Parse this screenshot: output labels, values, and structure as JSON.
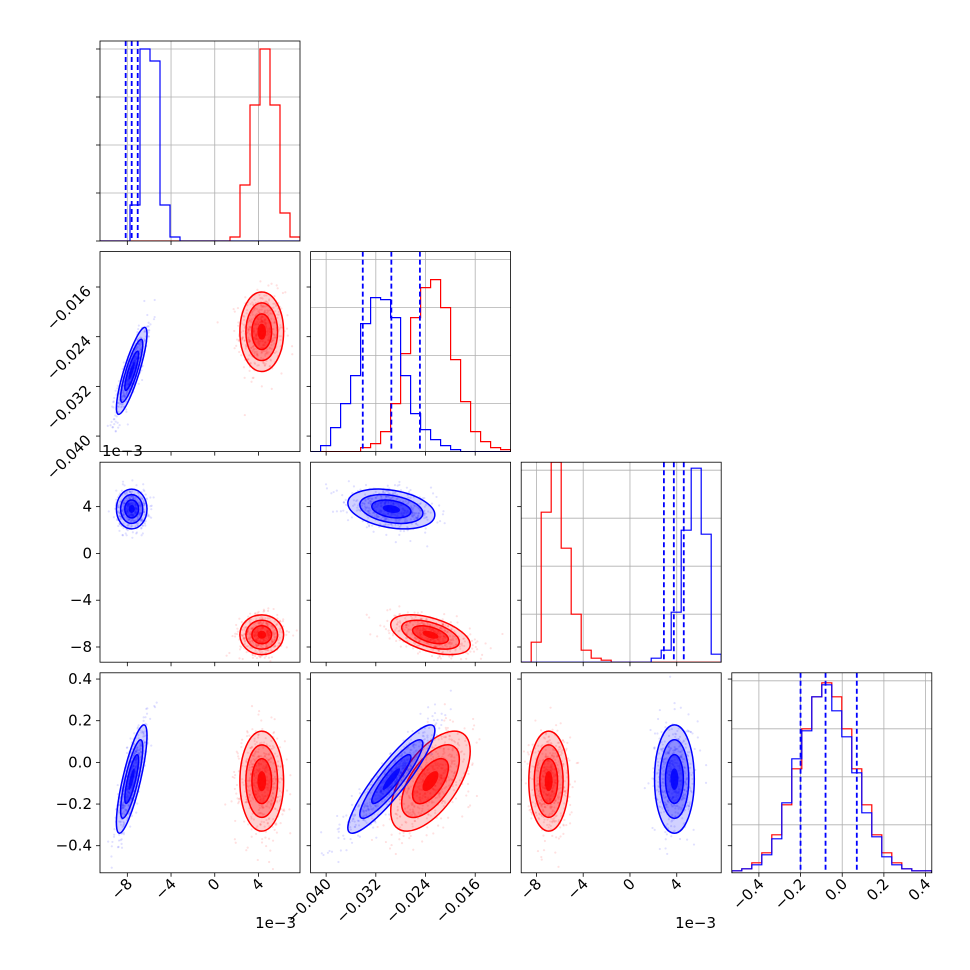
{
  "chart_data": {
    "type": "corner",
    "parameters": [
      {
        "range": [
          -10.5,
          7.8
        ],
        "ticks": [
          -8,
          -4,
          0,
          4
        ],
        "tick_labels": [
          "−8",
          "−4",
          "0",
          "4"
        ],
        "offset_label": "1e−3"
      },
      {
        "range": [
          -0.0425,
          -0.0103
        ],
        "ticks": [
          -0.04,
          -0.032,
          -0.024,
          -0.016
        ],
        "tick_labels": [
          "−0.040",
          "−0.032",
          "−0.024",
          "−0.016"
        ],
        "offset_label": ""
      },
      {
        "range": [
          -9.3,
          7.8
        ],
        "ticks": [
          -8,
          -4,
          0,
          4
        ],
        "tick_labels": [
          "−8",
          "−4",
          "0",
          "4"
        ],
        "offset_label": "1e−3"
      },
      {
        "range": [
          -0.53,
          0.43
        ],
        "ticks": [
          -0.4,
          -0.2,
          0.0,
          0.2,
          0.4
        ],
        "tick_labels": [
          "−0.4",
          "−0.2",
          "0.0",
          "0.2",
          "0.4"
        ],
        "offset_label": ""
      }
    ],
    "series": [
      {
        "color": "#ff0000",
        "means": [
          4.3,
          -0.0232,
          -6.95,
          -0.09
        ],
        "sds": [
          1.0,
          0.0032,
          0.85,
          0.12
        ],
        "correlations": [
          [
            1,
            0,
            0,
            0
          ],
          [
            0,
            1,
            -0.5,
            0.6
          ],
          [
            0,
            -0.5,
            1,
            0
          ],
          [
            0,
            0.6,
            0,
            1
          ]
        ],
        "histograms": [
          [
            0,
            0,
            0,
            0,
            0,
            0,
            0,
            0,
            0,
            0,
            0,
            0,
            0,
            0.02,
            0.28,
            0.68,
            0.96,
            0.68,
            0.14,
            0.02
          ],
          [
            0,
            0,
            0,
            0,
            0,
            0.02,
            0.04,
            0.1,
            0.24,
            0.49,
            0.67,
            0.82,
            0.86,
            0.72,
            0.46,
            0.25,
            0.1,
            0.05,
            0.02,
            0.01
          ],
          [
            0,
            0.1,
            0.75,
            1.0,
            0.57,
            0.24,
            0.06,
            0.02,
            0.01,
            0,
            0,
            0,
            0,
            0,
            0,
            0,
            0,
            0,
            0,
            0
          ],
          [
            0.01,
            0.02,
            0.05,
            0.1,
            0.19,
            0.34,
            0.52,
            0.72,
            0.88,
            0.95,
            0.88,
            0.72,
            0.52,
            0.34,
            0.19,
            0.1,
            0.05,
            0.02,
            0.01,
            0.01
          ]
        ]
      },
      {
        "color": "#0000ff",
        "means": [
          -7.6,
          -0.0295,
          3.8,
          -0.08
        ],
        "sds": [
          0.7,
          0.0035,
          0.85,
          0.13
        ],
        "correlations": [
          [
            1,
            0.85,
            0,
            0.8
          ],
          [
            0.85,
            1,
            -0.3,
            0.9
          ],
          [
            0,
            -0.3,
            1,
            0
          ],
          [
            0.8,
            0.9,
            0,
            1
          ]
        ],
        "histograms": [
          [
            0,
            0,
            0,
            0.18,
            0.96,
            0.9,
            0.18,
            0.02,
            0,
            0,
            0,
            0,
            0,
            0,
            0,
            0,
            0,
            0,
            0,
            0
          ],
          [
            0,
            0.03,
            0.12,
            0.24,
            0.38,
            0.64,
            0.77,
            0.76,
            0.67,
            0.38,
            0.19,
            0.11,
            0.06,
            0.03,
            0.01,
            0,
            0,
            0,
            0,
            0
          ],
          [
            0,
            0,
            0,
            0,
            0,
            0,
            0,
            0,
            0,
            0,
            0,
            0,
            0,
            0.02,
            0.06,
            0.25,
            0.66,
            0.97,
            0.64,
            0.04
          ],
          [
            0.01,
            0.02,
            0.04,
            0.09,
            0.17,
            0.35,
            0.57,
            0.71,
            0.88,
            0.94,
            0.81,
            0.68,
            0.5,
            0.3,
            0.18,
            0.08,
            0.04,
            0.02,
            0.01,
            0.01
          ]
        ],
        "quantiles": [
          [
            -8.15,
            -7.6,
            -7.05
          ],
          [
            -0.0341,
            -0.0295,
            -0.0249
          ],
          [
            2.9,
            3.75,
            4.6
          ],
          [
            -0.2,
            -0.08,
            0.07
          ]
        ]
      }
    ]
  }
}
